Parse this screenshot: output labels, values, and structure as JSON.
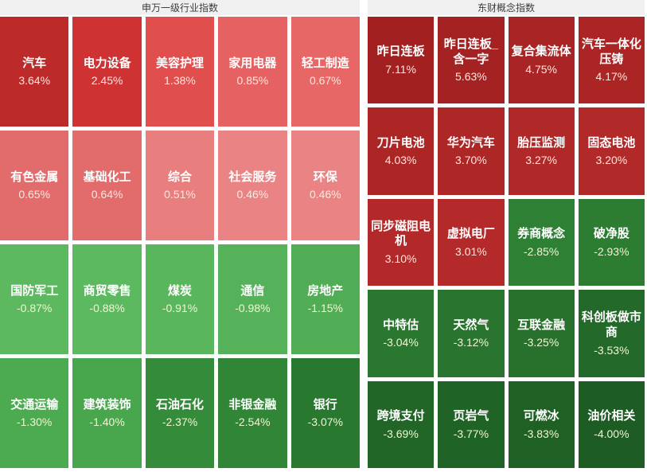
{
  "header": {
    "left_title": "申万一级行业指数",
    "right_title": "东财概念指数"
  },
  "text_colors": {
    "name": "#ffffff",
    "value_on_red": "#ffe6de",
    "value_on_green": "#f2f6d5"
  },
  "chart_data": [
    {
      "type": "heatmap",
      "title": "申万一级行业指数",
      "unit": "%",
      "columns": 5,
      "rows": 4,
      "cells": [
        {
          "label": "汽车",
          "value": 3.64,
          "display": "3.64%",
          "color": "#bd2a2a"
        },
        {
          "label": "电力设备",
          "value": 2.45,
          "display": "2.45%",
          "color": "#cf3232"
        },
        {
          "label": "美容护理",
          "value": 1.38,
          "display": "1.38%",
          "color": "#e14e4e"
        },
        {
          "label": "家用电器",
          "value": 0.85,
          "display": "0.85%",
          "color": "#e66161"
        },
        {
          "label": "轻工制造",
          "value": 0.67,
          "display": "0.67%",
          "color": "#e76666"
        },
        {
          "label": "有色金属",
          "value": 0.65,
          "display": "0.65%",
          "color": "#e26b6b"
        },
        {
          "label": "基础化工",
          "value": 0.64,
          "display": "0.64%",
          "color": "#e26b6b"
        },
        {
          "label": "综合",
          "value": 0.51,
          "display": "0.51%",
          "color": "#e97e7e"
        },
        {
          "label": "社会服务",
          "value": 0.46,
          "display": "0.46%",
          "color": "#ea8484"
        },
        {
          "label": "环保",
          "value": 0.46,
          "display": "0.46%",
          "color": "#ea8484"
        },
        {
          "label": "国防军工",
          "value": -0.87,
          "display": "-0.87%",
          "color": "#5cb960"
        },
        {
          "label": "商贸零售",
          "value": -0.88,
          "display": "-0.88%",
          "color": "#5cb960"
        },
        {
          "label": "煤炭",
          "value": -0.91,
          "display": "-0.91%",
          "color": "#59b65d"
        },
        {
          "label": "通信",
          "value": -0.98,
          "display": "-0.98%",
          "color": "#56b25a"
        },
        {
          "label": "房地产",
          "value": -1.15,
          "display": "-1.15%",
          "color": "#50ad55"
        },
        {
          "label": "交通运输",
          "value": -1.3,
          "display": "-1.30%",
          "color": "#4caa51"
        },
        {
          "label": "建筑装饰",
          "value": -1.4,
          "display": "-1.40%",
          "color": "#48a64d"
        },
        {
          "label": "石油石化",
          "value": -2.37,
          "display": "-2.37%",
          "color": "#348b3a"
        },
        {
          "label": "非银金融",
          "value": -2.54,
          "display": "-2.54%",
          "color": "#308536"
        },
        {
          "label": "银行",
          "value": -3.07,
          "display": "-3.07%",
          "color": "#287830"
        }
      ]
    },
    {
      "type": "heatmap",
      "title": "东财概念指数",
      "unit": "%",
      "columns": 4,
      "rows": 5,
      "cells": [
        {
          "label": "昨日连板",
          "value": 7.11,
          "display": "7.11%",
          "color": "#a32020"
        },
        {
          "label": "昨日连板_含一字",
          "value": 5.63,
          "display": "5.63%",
          "color": "#a52222"
        },
        {
          "label": "复合集流体",
          "value": 4.75,
          "display": "4.75%",
          "color": "#a92424"
        },
        {
          "label": "汽车一体化压铸",
          "value": 4.17,
          "display": "4.17%",
          "color": "#ab2525"
        },
        {
          "label": "刀片电池",
          "value": 4.03,
          "display": "4.03%",
          "color": "#ac2626"
        },
        {
          "label": "华为汽车",
          "value": 3.7,
          "display": "3.70%",
          "color": "#ae2727"
        },
        {
          "label": "胎压监测",
          "value": 3.27,
          "display": "3.27%",
          "color": "#b12828"
        },
        {
          "label": "固态电池",
          "value": 3.2,
          "display": "3.20%",
          "color": "#b22929"
        },
        {
          "label": "同步磁阻电机",
          "value": 3.1,
          "display": "3.10%",
          "color": "#b32929"
        },
        {
          "label": "虚拟电厂",
          "value": 3.01,
          "display": "3.01%",
          "color": "#b42a2a"
        },
        {
          "label": "券商概念",
          "value": -2.85,
          "display": "-2.85%",
          "color": "#2e8034"
        },
        {
          "label": "破净股",
          "value": -2.93,
          "display": "-2.93%",
          "color": "#2c7c32"
        },
        {
          "label": "中特估",
          "value": -3.04,
          "display": "-3.04%",
          "color": "#2a7830"
        },
        {
          "label": "天然气",
          "value": -3.12,
          "display": "-3.12%",
          "color": "#29752f"
        },
        {
          "label": "互联金融",
          "value": -3.25,
          "display": "-3.25%",
          "color": "#27712d"
        },
        {
          "label": "科创板做市商",
          "value": -3.53,
          "display": "-3.53%",
          "color": "#236a2a"
        },
        {
          "label": "跨境支付",
          "value": -3.69,
          "display": "-3.69%",
          "color": "#216527"
        },
        {
          "label": "页岩气",
          "value": -3.77,
          "display": "-3.77%",
          "color": "#206326"
        },
        {
          "label": "可燃冰",
          "value": -3.83,
          "display": "-3.83%",
          "color": "#1f6125"
        },
        {
          "label": "油价相关",
          "value": -4.0,
          "display": "-4.00%",
          "color": "#1d5c23"
        }
      ]
    }
  ]
}
